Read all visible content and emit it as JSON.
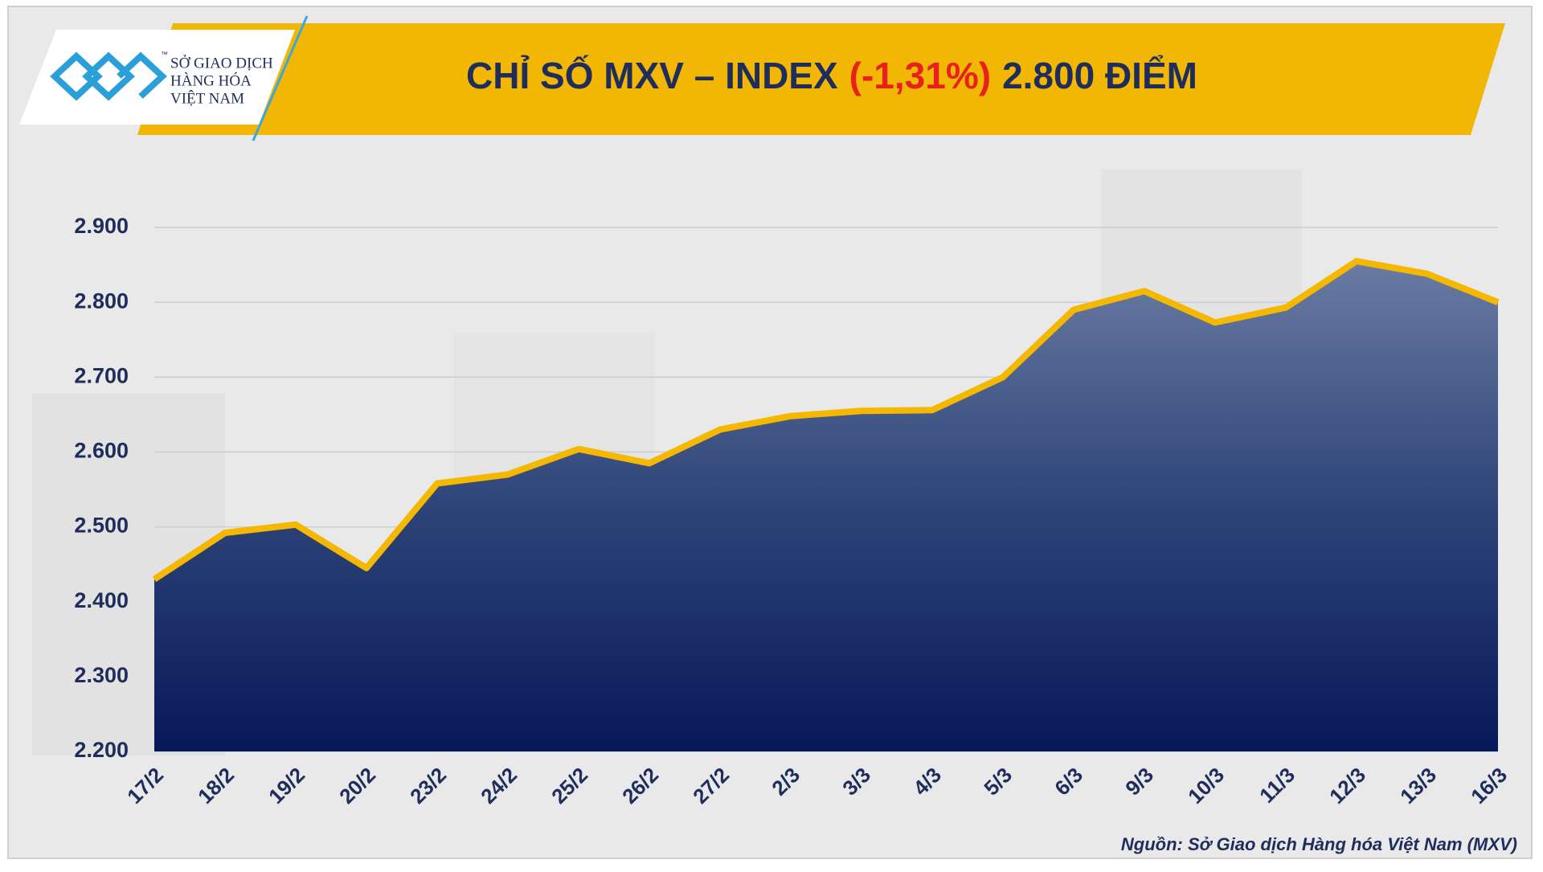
{
  "logo": {
    "lines": [
      "SỞ GIAO DỊCH",
      "HÀNG HÓA",
      "VIỆT NAM"
    ],
    "tm": "™"
  },
  "chart_data": {
    "type": "area",
    "title": {
      "lead": "CHỈ SỐ MXV – INDEX",
      "change": "(-1,31%)",
      "tail": "2.800 ĐIỂM"
    },
    "categories": [
      "17/2",
      "18/2",
      "19/2",
      "20/2",
      "23/2",
      "24/2",
      "25/2",
      "26/2",
      "27/2",
      "2/3",
      "3/3",
      "4/3",
      "5/3",
      "6/3",
      "9/3",
      "10/3",
      "11/3",
      "12/3",
      "13/3",
      "16/3"
    ],
    "values": [
      2430,
      2492,
      2503,
      2445,
      2558,
      2570,
      2604,
      2585,
      2630,
      2648,
      2655,
      2656,
      2700,
      2790,
      2815,
      2773,
      2793,
      2855,
      2838,
      2800
    ],
    "color": "#f5b800",
    "ylim": [
      2200,
      2900
    ],
    "yticks": [
      {
        "value": 2200,
        "label": "2.200"
      },
      {
        "value": 2300,
        "label": "2.300"
      },
      {
        "value": 2400,
        "label": "2.400"
      },
      {
        "value": 2500,
        "label": "2.500"
      },
      {
        "value": 2600,
        "label": "2.600"
      },
      {
        "value": 2700,
        "label": "2.700"
      },
      {
        "value": 2800,
        "label": "2.800"
      },
      {
        "value": 2900,
        "label": "2.900"
      }
    ],
    "grid": true,
    "source": "Nguồn: Sở Giao dịch Hàng hóa Việt Nam (MXV)"
  }
}
